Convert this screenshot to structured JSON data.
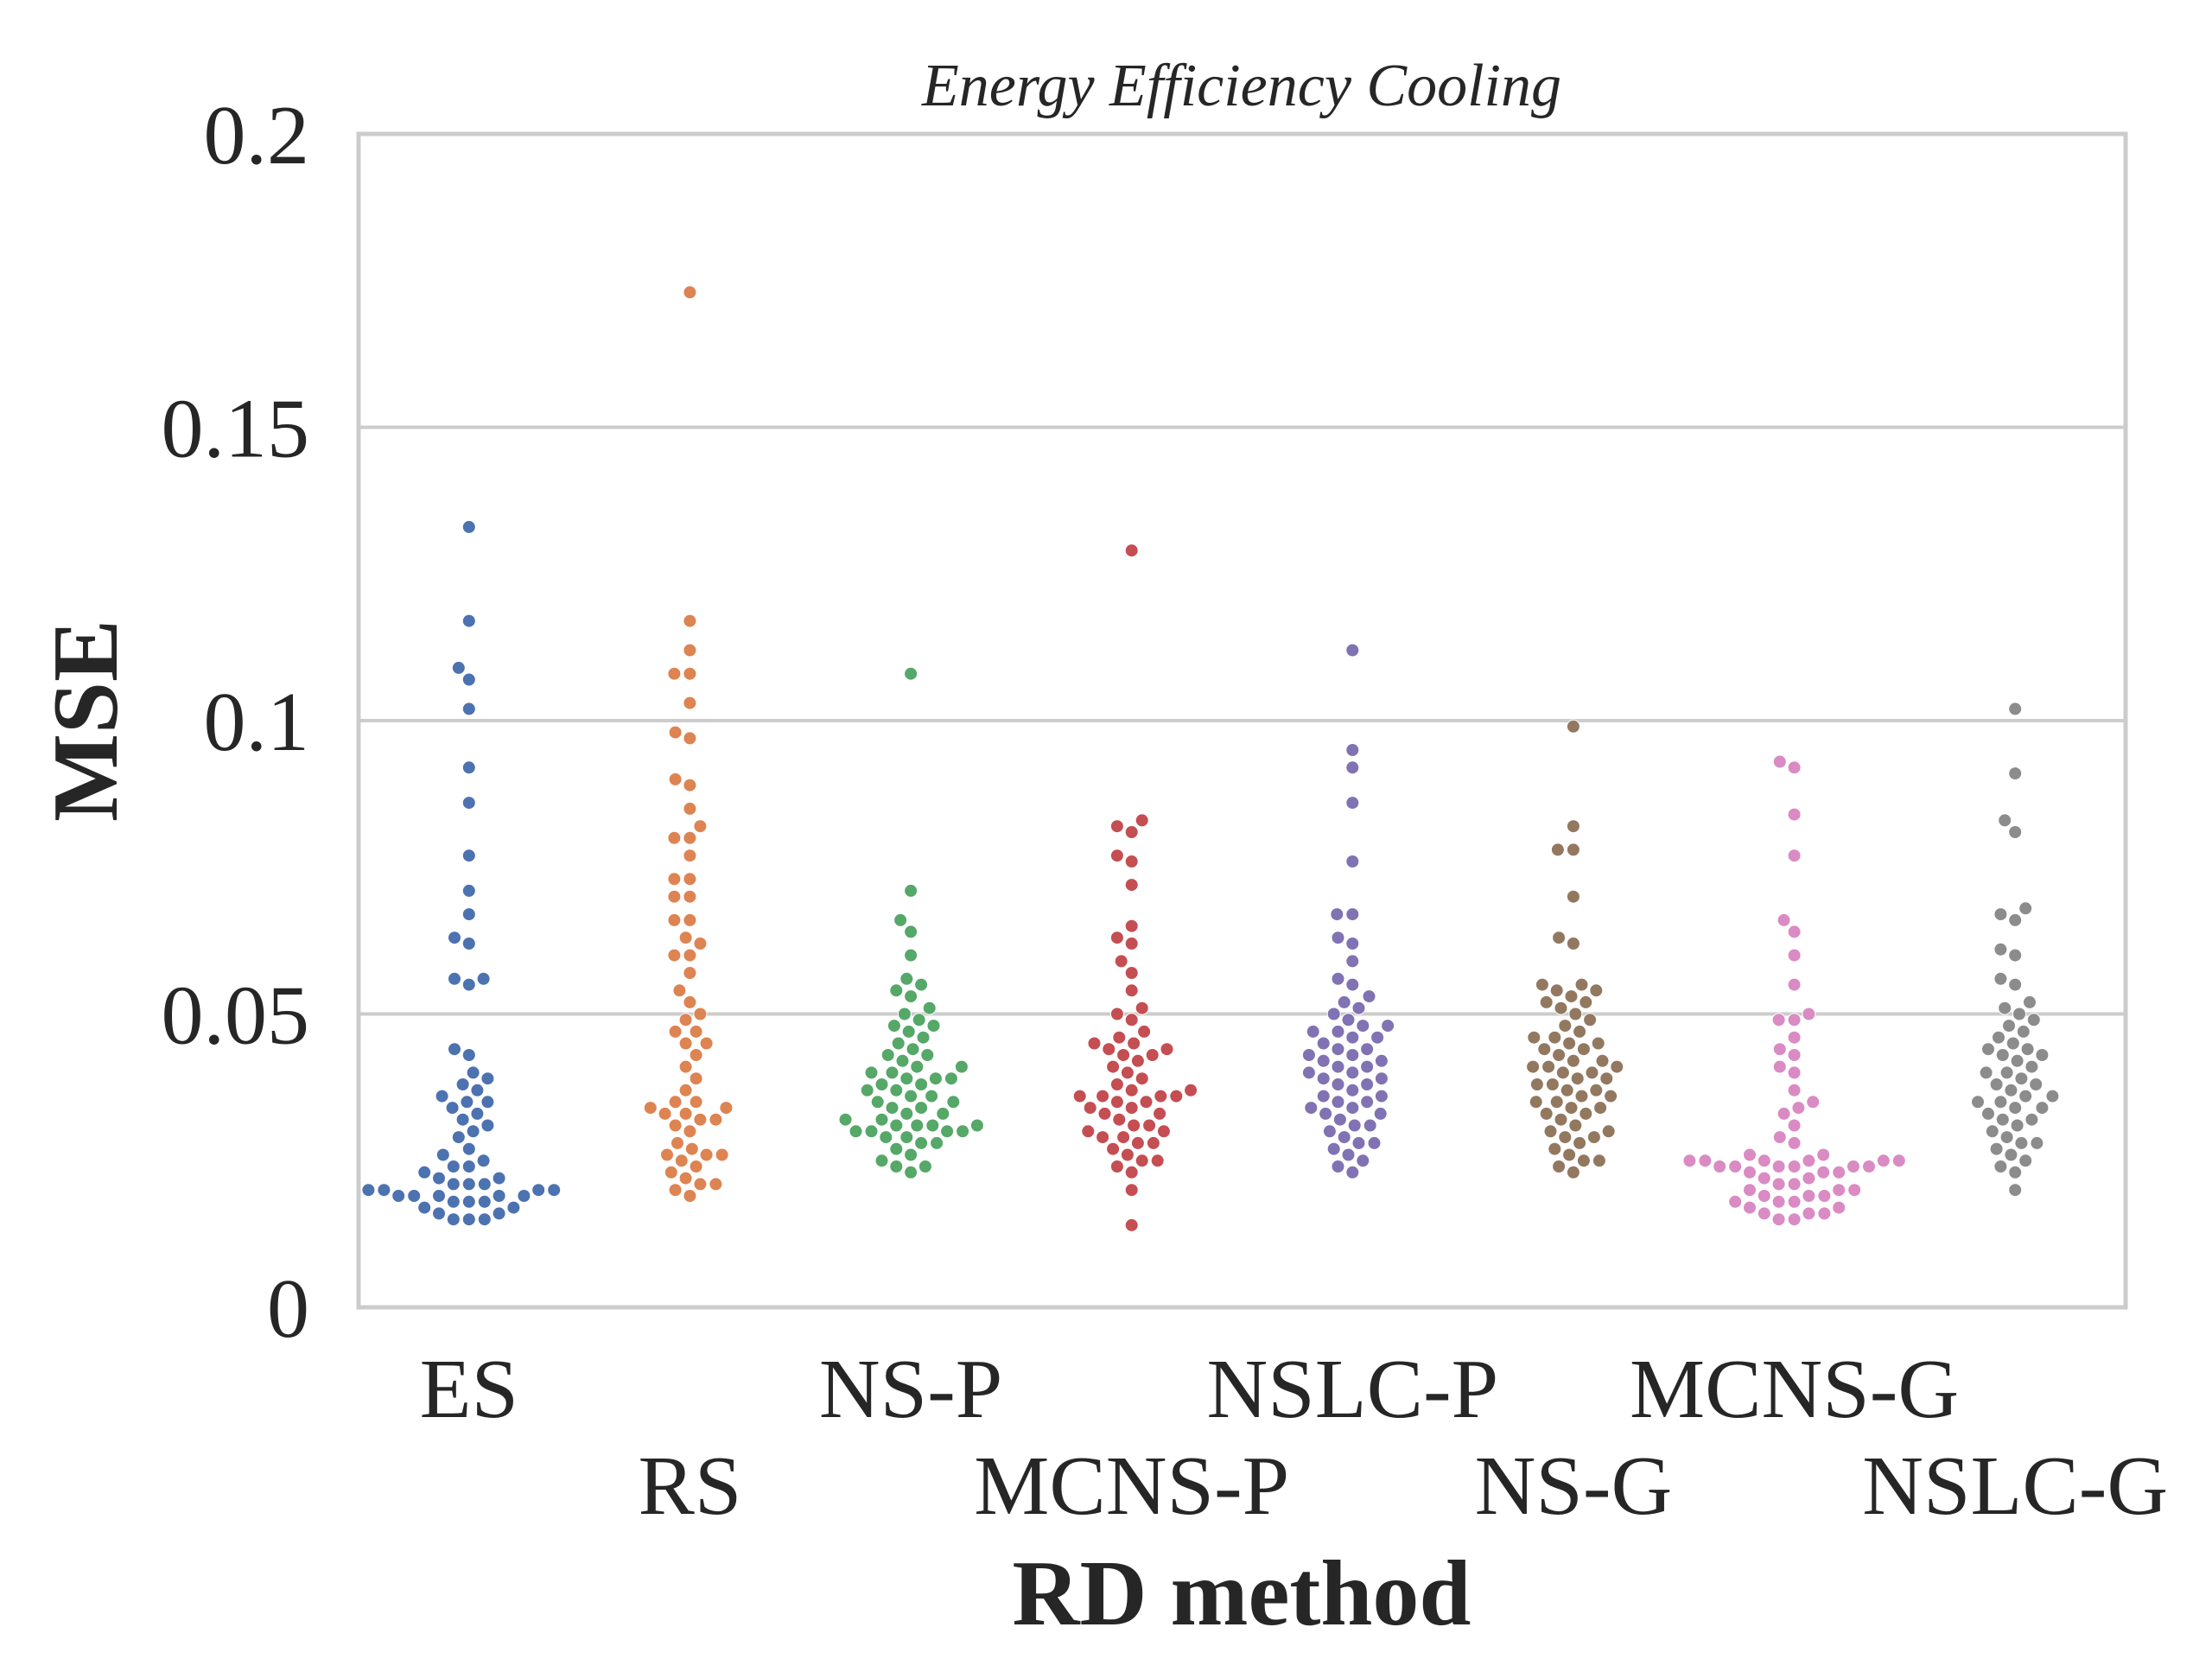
{
  "chart_data": {
    "type": "scatter",
    "title": "Energy Efficiency Cooling",
    "xlabel": "RD method",
    "ylabel": "MSE",
    "ylim": [
      0,
      0.2
    ],
    "yticks": [
      "0",
      "0.05",
      "0.1",
      "0.15",
      "0.2"
    ],
    "grid": true,
    "categories": [
      "ES",
      "RS",
      "NS-P",
      "MCNS-P",
      "NSLC-P",
      "NS-G",
      "MCNS-G",
      "NSLC-G"
    ],
    "colors": [
      "#4c72b0",
      "#dd8452",
      "#55a868",
      "#c44e52",
      "#8172b3",
      "#937860",
      "#da8bc3",
      "#8c8c8c"
    ],
    "series": [
      {
        "values": [
          0.133,
          0.117,
          0.109,
          0.107,
          0.102,
          0.092,
          0.086,
          0.077,
          0.071,
          0.067,
          0.063,
          0.062,
          0.056,
          0.056,
          0.055,
          0.044,
          0.043,
          0.04,
          0.039,
          0.038,
          0.037,
          0.036,
          0.035,
          0.035,
          0.034,
          0.033,
          0.032,
          0.031,
          0.03,
          0.029,
          0.027,
          0.026,
          0.025,
          0.024,
          0.024,
          0.023,
          0.022,
          0.022,
          0.021,
          0.021,
          0.021,
          0.02,
          0.02,
          0.02,
          0.02,
          0.019,
          0.019,
          0.019,
          0.019,
          0.019,
          0.018,
          0.018,
          0.018,
          0.017,
          0.017,
          0.016,
          0.016,
          0.015,
          0.015,
          0.015
        ]
      },
      {
        "values": [
          0.173,
          0.117,
          0.112,
          0.108,
          0.108,
          0.103,
          0.098,
          0.097,
          0.09,
          0.089,
          0.085,
          0.082,
          0.08,
          0.08,
          0.077,
          0.073,
          0.073,
          0.07,
          0.07,
          0.066,
          0.066,
          0.063,
          0.062,
          0.06,
          0.06,
          0.057,
          0.054,
          0.052,
          0.05,
          0.049,
          0.047,
          0.047,
          0.045,
          0.045,
          0.043,
          0.041,
          0.039,
          0.037,
          0.035,
          0.035,
          0.034,
          0.034,
          0.033,
          0.033,
          0.032,
          0.032,
          0.031,
          0.03,
          0.028,
          0.027,
          0.026,
          0.026,
          0.026,
          0.025,
          0.024,
          0.023,
          0.022,
          0.021,
          0.021,
          0.02,
          0.019
        ]
      },
      {
        "values": [
          0.108,
          0.071,
          0.066,
          0.064,
          0.06,
          0.056,
          0.055,
          0.054,
          0.053,
          0.051,
          0.05,
          0.049,
          0.048,
          0.048,
          0.047,
          0.046,
          0.045,
          0.044,
          0.043,
          0.043,
          0.042,
          0.041,
          0.041,
          0.04,
          0.04,
          0.039,
          0.039,
          0.039,
          0.038,
          0.038,
          0.037,
          0.037,
          0.036,
          0.036,
          0.035,
          0.035,
          0.034,
          0.034,
          0.033,
          0.033,
          0.032,
          0.032,
          0.031,
          0.031,
          0.031,
          0.031,
          0.03,
          0.03,
          0.03,
          0.03,
          0.029,
          0.029,
          0.028,
          0.028,
          0.027,
          0.026,
          0.025,
          0.024,
          0.024,
          0.023
        ]
      },
      {
        "values": [
          0.129,
          0.083,
          0.082,
          0.081,
          0.077,
          0.076,
          0.072,
          0.065,
          0.063,
          0.062,
          0.059,
          0.057,
          0.054,
          0.051,
          0.05,
          0.049,
          0.047,
          0.046,
          0.045,
          0.045,
          0.044,
          0.044,
          0.043,
          0.043,
          0.042,
          0.041,
          0.04,
          0.039,
          0.038,
          0.037,
          0.037,
          0.036,
          0.036,
          0.036,
          0.036,
          0.035,
          0.035,
          0.034,
          0.034,
          0.033,
          0.033,
          0.032,
          0.031,
          0.031,
          0.03,
          0.03,
          0.029,
          0.029,
          0.028,
          0.028,
          0.027,
          0.026,
          0.025,
          0.025,
          0.024,
          0.023,
          0.02,
          0.014
        ]
      },
      {
        "values": [
          0.112,
          0.095,
          0.092,
          0.086,
          0.076,
          0.067,
          0.067,
          0.063,
          0.062,
          0.059,
          0.056,
          0.055,
          0.053,
          0.052,
          0.051,
          0.05,
          0.049,
          0.048,
          0.048,
          0.047,
          0.047,
          0.046,
          0.046,
          0.045,
          0.044,
          0.044,
          0.043,
          0.043,
          0.042,
          0.042,
          0.041,
          0.041,
          0.04,
          0.04,
          0.039,
          0.039,
          0.038,
          0.038,
          0.037,
          0.036,
          0.036,
          0.035,
          0.035,
          0.034,
          0.034,
          0.033,
          0.033,
          0.032,
          0.031,
          0.031,
          0.03,
          0.029,
          0.028,
          0.028,
          0.027,
          0.026,
          0.025,
          0.024,
          0.023
        ]
      },
      {
        "values": [
          0.099,
          0.082,
          0.078,
          0.078,
          0.07,
          0.063,
          0.062,
          0.055,
          0.055,
          0.054,
          0.054,
          0.053,
          0.052,
          0.052,
          0.051,
          0.05,
          0.049,
          0.048,
          0.047,
          0.046,
          0.046,
          0.045,
          0.045,
          0.044,
          0.044,
          0.043,
          0.042,
          0.042,
          0.041,
          0.041,
          0.041,
          0.04,
          0.04,
          0.039,
          0.039,
          0.038,
          0.038,
          0.037,
          0.037,
          0.036,
          0.036,
          0.035,
          0.035,
          0.034,
          0.034,
          0.033,
          0.033,
          0.032,
          0.031,
          0.03,
          0.03,
          0.029,
          0.029,
          0.028,
          0.027,
          0.026,
          0.025,
          0.025,
          0.024,
          0.023
        ]
      },
      {
        "values": [
          0.093,
          0.092,
          0.084,
          0.077,
          0.066,
          0.064,
          0.06,
          0.055,
          0.05,
          0.049,
          0.049,
          0.046,
          0.044,
          0.043,
          0.041,
          0.04,
          0.037,
          0.035,
          0.034,
          0.033,
          0.031,
          0.029,
          0.028,
          0.026,
          0.026,
          0.025,
          0.025,
          0.025,
          0.025,
          0.025,
          0.025,
          0.024,
          0.024,
          0.024,
          0.024,
          0.024,
          0.024,
          0.023,
          0.023,
          0.023,
          0.022,
          0.022,
          0.021,
          0.021,
          0.02,
          0.02,
          0.02,
          0.019,
          0.019,
          0.019,
          0.018,
          0.018,
          0.018,
          0.017,
          0.017,
          0.016,
          0.016,
          0.016,
          0.015,
          0.015
        ]
      },
      {
        "values": [
          0.102,
          0.091,
          0.083,
          0.081,
          0.068,
          0.067,
          0.066,
          0.061,
          0.06,
          0.056,
          0.055,
          0.052,
          0.051,
          0.05,
          0.049,
          0.048,
          0.047,
          0.046,
          0.045,
          0.044,
          0.044,
          0.043,
          0.043,
          0.042,
          0.041,
          0.04,
          0.04,
          0.039,
          0.038,
          0.038,
          0.037,
          0.036,
          0.036,
          0.035,
          0.035,
          0.034,
          0.034,
          0.033,
          0.032,
          0.032,
          0.031,
          0.03,
          0.029,
          0.028,
          0.028,
          0.027,
          0.026,
          0.025,
          0.024,
          0.023,
          0.02
        ]
      }
    ]
  }
}
